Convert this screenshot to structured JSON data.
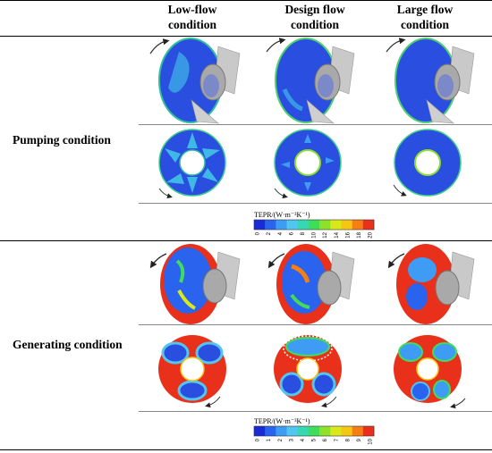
{
  "columns": [
    "Low-flow condition",
    "Design flow condition",
    "Large flow condition"
  ],
  "rows": [
    {
      "label": "Pumping condition"
    },
    {
      "label": "Generating condition"
    }
  ],
  "colorbars": [
    {
      "title": "TEPR/(W·m⁻³K⁻¹)",
      "ticks": [
        "0",
        "2",
        "4",
        "6",
        "8",
        "10",
        "12",
        "14",
        "16",
        "18",
        "20"
      ],
      "colors": [
        "#1a2bd6",
        "#2a63ee",
        "#3f9cf4",
        "#51c6f0",
        "#35d9b0",
        "#3fdd5a",
        "#8fe02b",
        "#d8e81a",
        "#f6c614",
        "#f57f12",
        "#e8301a"
      ]
    },
    {
      "title": "TEPR/(W·m⁻³K⁻¹)",
      "ticks": [
        "0",
        "1",
        "2",
        "3",
        "4",
        "5",
        "6",
        "7",
        "8",
        "9",
        "10"
      ],
      "colors": [
        "#1a2bd6",
        "#2a63ee",
        "#3f9cf4",
        "#51c6f0",
        "#35d9b0",
        "#3fdd5a",
        "#8fe02b",
        "#d8e81a",
        "#f6c614",
        "#f57f12",
        "#e8301a"
      ]
    }
  ]
}
